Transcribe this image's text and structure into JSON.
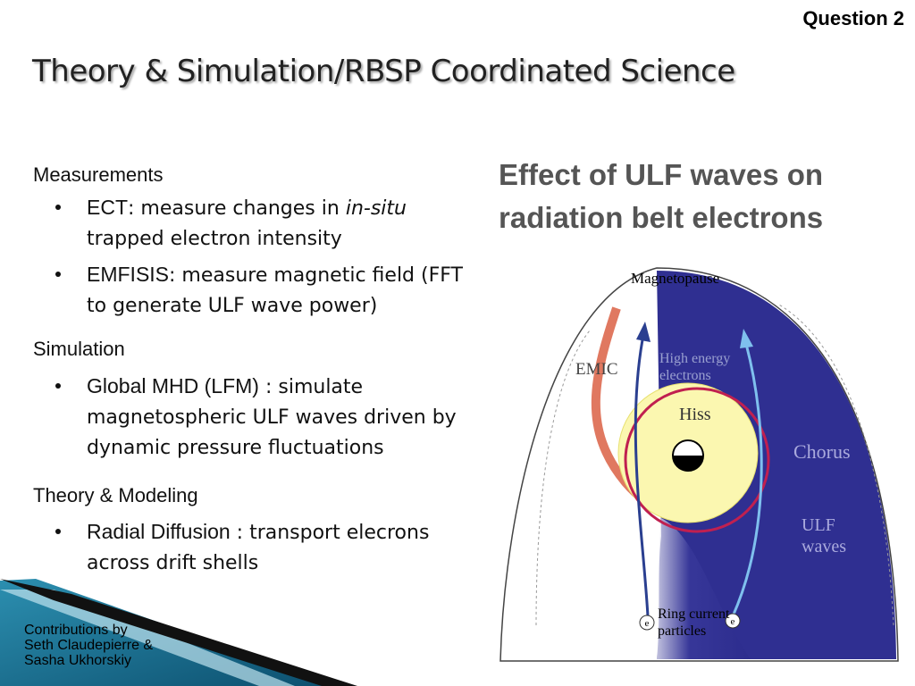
{
  "header": {
    "tag": "Question 2",
    "title": "Theory & Simulation/RBSP Coordinated Science"
  },
  "sections": [
    {
      "heading": "Measurements",
      "bullets": [
        [
          {
            "text": "ECT",
            "style": "term"
          },
          {
            "text": ": measure changes in ",
            "style": "plain"
          },
          {
            "text": "in-situ",
            "style": "italic"
          },
          {
            "text": " trapped electron intensity",
            "style": "plain"
          }
        ],
        [
          {
            "text": "EMFISIS",
            "style": "term"
          },
          {
            "text": ": measure magnetic field (FFT to generate ULF wave power)",
            "style": "plain"
          }
        ]
      ]
    },
    {
      "heading": "Simulation",
      "bullets": [
        [
          {
            "text": "Global MHD (LFM)",
            "style": "term"
          },
          {
            "text": " : simulate magnetospheric ULF waves driven by dynamic pressure fluctuations",
            "style": "plain"
          }
        ]
      ]
    },
    {
      "heading": "Theory & Modeling",
      "bullets": [
        [
          {
            "text": "Radial Diffusion",
            "style": "term"
          },
          {
            "text": " : transport elecrons across drift shells",
            "style": "plain"
          }
        ]
      ]
    }
  ],
  "figure": {
    "title": "Effect of ULF waves on radiation belt electrons",
    "labels": {
      "magnetopause": "Magnetopause",
      "emic": "EMIC",
      "high_energy": "High energy electrons",
      "hiss": "Hiss",
      "chorus": "Chorus",
      "ulf": "ULF waves",
      "ring_current": "Ring current particles",
      "electron": "e"
    }
  },
  "footer": {
    "lines": [
      "Contributions by",
      "Seth Claudepierre &",
      "Sasha Ukhorskiy"
    ]
  }
}
